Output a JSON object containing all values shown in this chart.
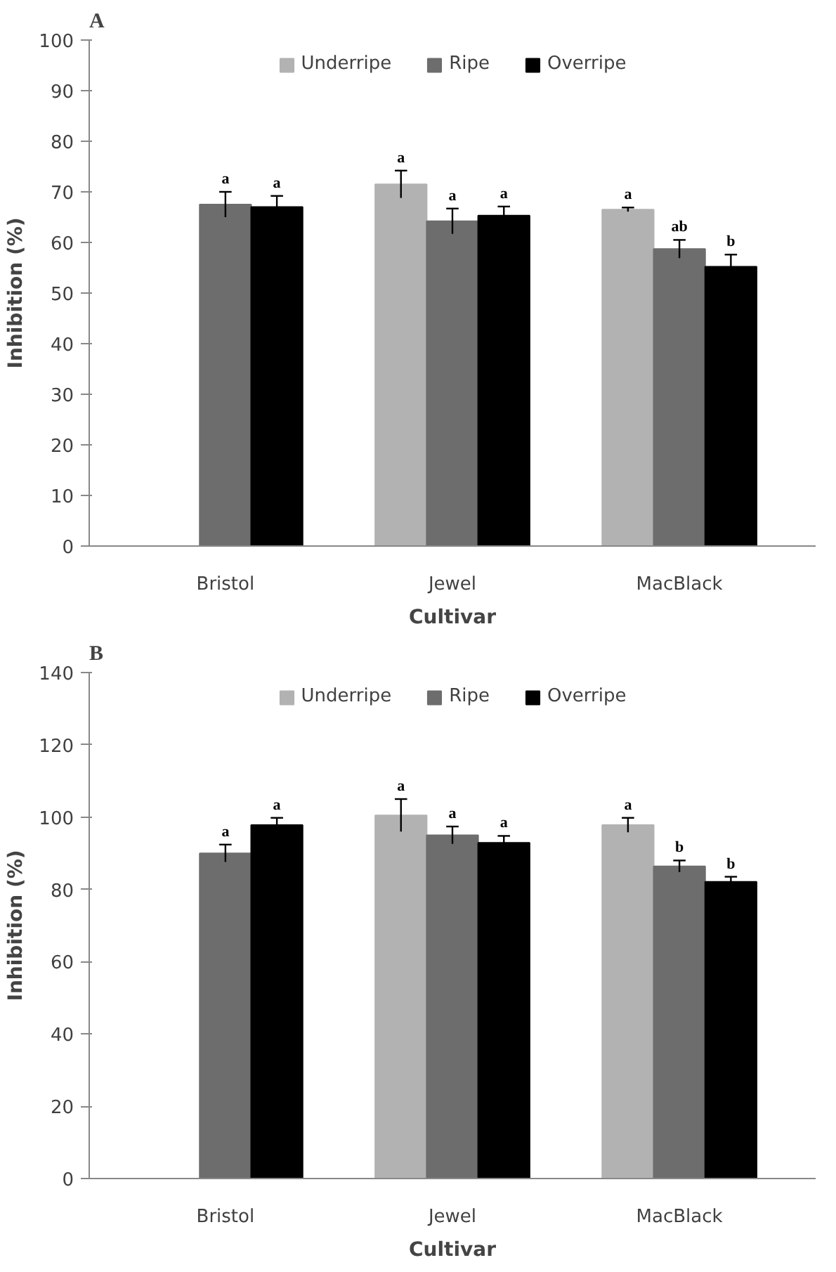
{
  "chart_data": [
    {
      "type": "bar",
      "title": "A",
      "xlabel": "Cultivar",
      "ylabel": "Inhibition (%)",
      "categories": [
        "Bristol",
        "Jewel",
        "MacBlack"
      ],
      "ylim": [
        0,
        100
      ],
      "yticks": [
        0,
        10,
        20,
        30,
        40,
        50,
        60,
        70,
        80,
        90,
        100
      ],
      "legend": "top",
      "grid": false,
      "series": [
        {
          "name": "Underripe",
          "color": "#b2b2b2",
          "values": [
            null,
            71.5,
            66.5
          ],
          "errors": [
            null,
            2.7,
            0.4
          ],
          "value_labels": [
            null,
            "a",
            "a"
          ]
        },
        {
          "name": "Ripe",
          "color": "#6d6d6d",
          "values": [
            67.5,
            64.2,
            58.7
          ],
          "errors": [
            2.5,
            2.5,
            1.8
          ],
          "value_labels": [
            "a",
            "a",
            "ab"
          ]
        },
        {
          "name": "Overripe",
          "color": "#000000",
          "values": [
            67,
            65.3,
            55.2
          ],
          "errors": [
            2.2,
            1.8,
            2.4
          ],
          "value_labels": [
            "a",
            "a",
            "b"
          ]
        }
      ]
    },
    {
      "type": "bar",
      "title": "B",
      "xlabel": "Cultivar",
      "ylabel": "Inhibition (%)",
      "categories": [
        "Bristol",
        "Jewel",
        "MacBlack"
      ],
      "ylim": [
        0,
        140
      ],
      "yticks": [
        0,
        20,
        40,
        60,
        80,
        100,
        120,
        140
      ],
      "legend": "top",
      "grid": false,
      "series": [
        {
          "name": "Underripe",
          "color": "#b2b2b2",
          "values": [
            null,
            100.5,
            97.8
          ],
          "errors": [
            null,
            4.5,
            2
          ],
          "value_labels": [
            null,
            "a",
            "a"
          ]
        },
        {
          "name": "Ripe",
          "color": "#6d6d6d",
          "values": [
            90,
            95,
            86.4
          ],
          "errors": [
            2.4,
            2.4,
            1.6
          ],
          "value_labels": [
            "a",
            "a",
            "b"
          ]
        },
        {
          "name": "Overripe",
          "color": "#000000",
          "values": [
            97.8,
            92.9,
            82.1
          ],
          "errors": [
            2,
            1.9,
            1.4
          ],
          "value_labels": [
            "a",
            "a",
            "b"
          ]
        }
      ]
    }
  ]
}
